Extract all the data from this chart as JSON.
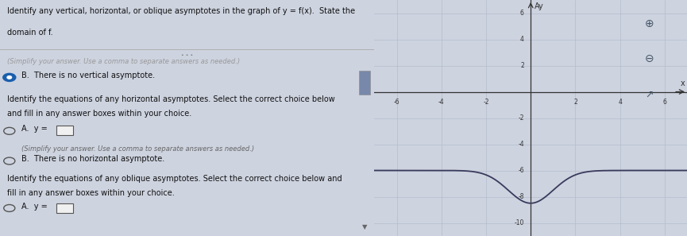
{
  "graph_xlim": [
    -7,
    7
  ],
  "graph_ylim": [
    -11,
    7
  ],
  "xticks": [
    -6,
    -4,
    -2,
    2,
    4,
    6
  ],
  "yticks": [
    -10,
    -8,
    -6,
    -4,
    -2,
    2,
    4,
    6
  ],
  "horizontal_asymptote": -6,
  "curve_color": "#3a3a5c",
  "axis_color": "#333333",
  "grid_color": "#b0b8c8",
  "bg_color": "#cdd3df",
  "panel_bg": "#cdd3df",
  "text_bg": "#e2e6ee",
  "font_color": "#111111",
  "text_line1": "Identify any vertical, horizontal, or oblique asymptotes in the graph of y = f(x).  State the",
  "text_line2": "domain of f.",
  "faded_text": "(Simplify your answer. Use a comma to separate answers as needed.)",
  "section1_text": "B.  There is no vertical asymptote.",
  "section2_line1": "Identify the equations of any horizontal asymptotes. Select the correct choice below",
  "section2_line2": "and fill in any answer boxes within your choice.",
  "optA1_label": "A.  y =",
  "optA1_sub": "(Simplify your answer. Use a comma to separate answers as needed.)",
  "optB1_label": "B.  There is no horizontal asymptote.",
  "section3_line1": "Identify the equations of any oblique asymptotes. Select the correct choice below and",
  "section3_line2": "fill in any answer boxes within your choice.",
  "optA2_label": "A.  y =",
  "scrollbar_color": "#7788aa",
  "radio_filled_color": "#1a5fad",
  "radio_unfilled_color": "#555555",
  "divider_color": "#aaaaaa",
  "zoom_icon_color": "#555566"
}
